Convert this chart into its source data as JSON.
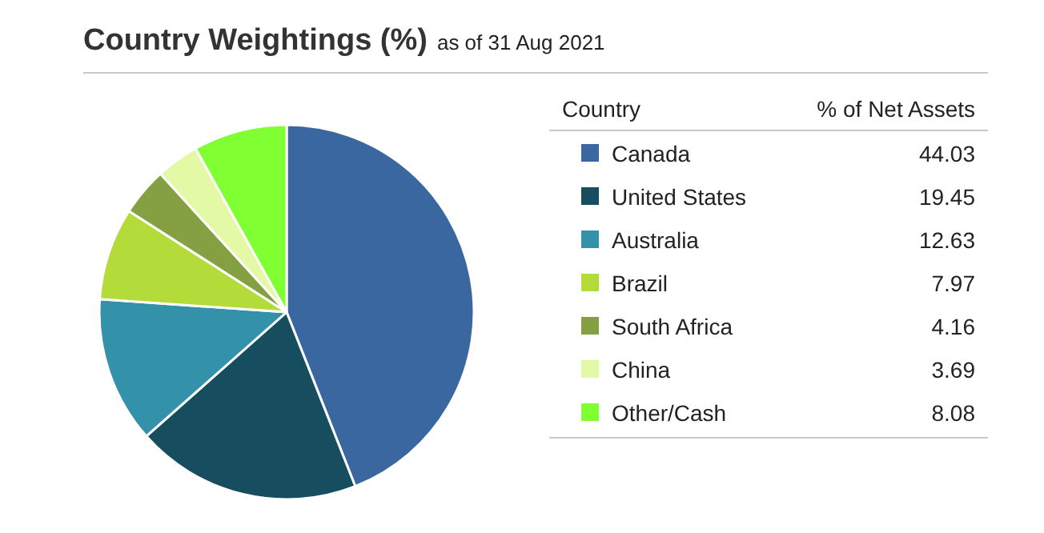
{
  "chart_data": {
    "type": "pie",
    "title": "Country Weightings (%)",
    "subtitle": "as of 31 Aug 2021",
    "legend_title": "Country",
    "ylabel": "% of Net Assets",
    "categories": [
      "Canada",
      "United States",
      "Australia",
      "Brazil",
      "South Africa",
      "China",
      "Other/Cash"
    ],
    "values": [
      44.03,
      19.45,
      12.63,
      7.97,
      4.16,
      3.69,
      8.08
    ],
    "colors": [
      "#3a67a0",
      "#164e5f",
      "#3391aa",
      "#b3dc3a",
      "#85a043",
      "#e3f9a5",
      "#80ff33"
    ],
    "data_labels": true,
    "legend": "right"
  }
}
